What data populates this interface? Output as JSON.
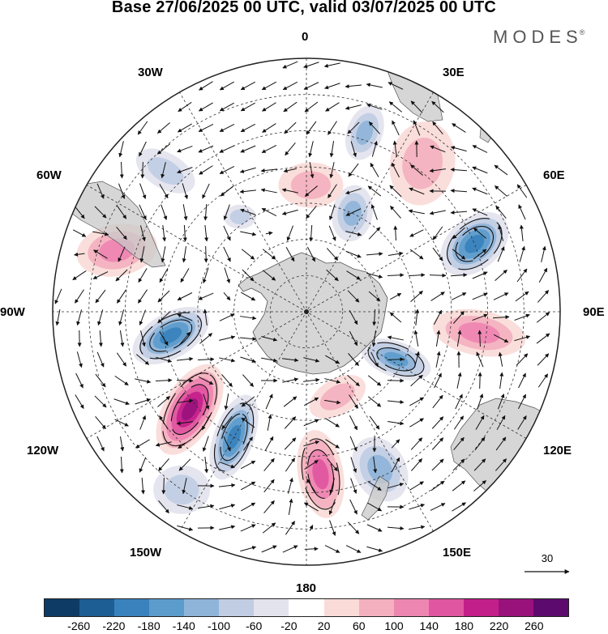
{
  "title": "Base 27/06/2025 00 UTC, valid 03/07/2025 00 UTC",
  "brand": {
    "name": "MODES",
    "mark": "®"
  },
  "longitude_labels": {
    "lon_0": "0",
    "lon_30e": "30E",
    "lon_60e": "60E",
    "lon_90e": "90E",
    "lon_120e": "120E",
    "lon_150e": "150E",
    "lon_180": "180",
    "lon_150w": "150W",
    "lon_120w": "120W",
    "lon_90w": "90W",
    "lon_60w": "60W",
    "lon_30w": "30W"
  },
  "reference_vector": {
    "value": "30"
  },
  "colorbar": {
    "colors": [
      "#0d3b66",
      "#1d5f95",
      "#3a82bd",
      "#5c9ccc",
      "#8fb4d9",
      "#c0cde3",
      "#e3e3ee",
      "#ffffff",
      "#fadbd8",
      "#f4b0bf",
      "#ee86b2",
      "#e056a0",
      "#c31f8a",
      "#99127c",
      "#5d0a6e"
    ],
    "tick_labels": [
      "-260",
      "-220",
      "-180",
      "-140",
      "-100",
      "-60",
      "-20",
      "20",
      "60",
      "100",
      "140",
      "180",
      "220",
      "260"
    ]
  },
  "anomaly_regions": [
    {
      "name": "pos-130w",
      "lon": -130,
      "lat": -48,
      "rx": 62,
      "ry": 32,
      "rot": -60,
      "value": 220
    },
    {
      "name": "neg-105w",
      "lon": -100,
      "lat": -52,
      "rx": 52,
      "ry": 28,
      "rot": -30,
      "value": -180
    },
    {
      "name": "neg-150w",
      "lon": -150,
      "lat": -50,
      "rx": 55,
      "ry": 25,
      "rot": -70,
      "value": -180
    },
    {
      "name": "pos-75w",
      "lon": -72,
      "lat": -35,
      "rx": 50,
      "ry": 32,
      "rot": -10,
      "value": 100
    },
    {
      "name": "neg-55w",
      "lon": -45,
      "lat": -35,
      "rx": 40,
      "ry": 22,
      "rot": 30,
      "value": -60
    },
    {
      "name": "pos-175e",
      "lon": 175,
      "lat": -45,
      "rx": 55,
      "ry": 28,
      "rot": 80,
      "value": 140
    },
    {
      "name": "neg-155e",
      "lon": 155,
      "lat": -42,
      "rx": 42,
      "ry": 32,
      "rot": 60,
      "value": -100
    },
    {
      "name": "neg-120e",
      "lon": 118,
      "lat": -62,
      "rx": 45,
      "ry": 22,
      "rot": 20,
      "value": -140
    },
    {
      "name": "pos-95e",
      "lon": 97,
      "lat": -42,
      "rx": 58,
      "ry": 28,
      "rot": 10,
      "value": 100
    },
    {
      "name": "neg-65e",
      "lon": 68,
      "lat": -40,
      "rx": 48,
      "ry": 32,
      "rot": -40,
      "value": -180
    },
    {
      "name": "pos-40e",
      "lon": 38,
      "lat": -38,
      "rx": 40,
      "ry": 52,
      "rot": 10,
      "value": 60
    },
    {
      "name": "neg-20e",
      "lon": 18,
      "lat": -38,
      "rx": 22,
      "ry": 35,
      "rot": 20,
      "value": -100
    },
    {
      "name": "neg-25e",
      "lon": 25,
      "lat": -60,
      "rx": 25,
      "ry": 35,
      "rot": 10,
      "value": -100
    },
    {
      "name": "pos-0e",
      "lon": 2,
      "lat": -55,
      "rx": 40,
      "ry": 28,
      "rot": 0,
      "value": 60
    },
    {
      "name": "neg-30w",
      "lon": -35,
      "lat": -58,
      "rx": 20,
      "ry": 15,
      "rot": 0,
      "value": -60
    },
    {
      "name": "pos-150e",
      "lon": 160,
      "lat": -65,
      "rx": 38,
      "ry": 22,
      "rot": -30,
      "value": 60
    },
    {
      "name": "neg-140w-rim",
      "lon": -145,
      "lat": -30,
      "rx": 35,
      "ry": 30,
      "rot": 0,
      "value": -60
    }
  ]
}
